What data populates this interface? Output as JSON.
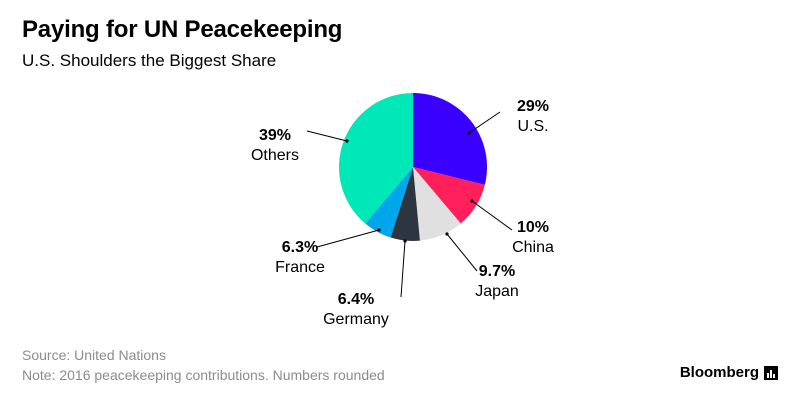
{
  "header": {
    "title": "Paying for UN Peacekeeping",
    "subtitle": "U.S. Shoulders the Biggest Share"
  },
  "footer": {
    "source": "Source: United Nations",
    "note": "Note: 2016 peacekeeping contributions. Numbers rounded",
    "brand": "Bloomberg"
  },
  "chart_data": {
    "type": "pie",
    "title": "Paying for UN Peacekeeping",
    "subtitle": "U.S. Shoulders the Biggest Share",
    "start_angle_deg": 0,
    "direction": "clockwise",
    "slices": [
      {
        "name": "U.S.",
        "label": "29%",
        "value": 29,
        "color": "#3a00ff"
      },
      {
        "name": "China",
        "label": "10%",
        "value": 10,
        "color": "#ff1f5b"
      },
      {
        "name": "Japan",
        "label": "9.7%",
        "value": 9.7,
        "color": "#e0e0e0"
      },
      {
        "name": "Germany",
        "label": "6.4%",
        "value": 6.4,
        "color": "#2d3540"
      },
      {
        "name": "France",
        "label": "6.3%",
        "value": 6.3,
        "color": "#00a6ec"
      },
      {
        "name": "Others",
        "label": "39%",
        "value": 39,
        "color": "#00e8b8"
      }
    ]
  }
}
